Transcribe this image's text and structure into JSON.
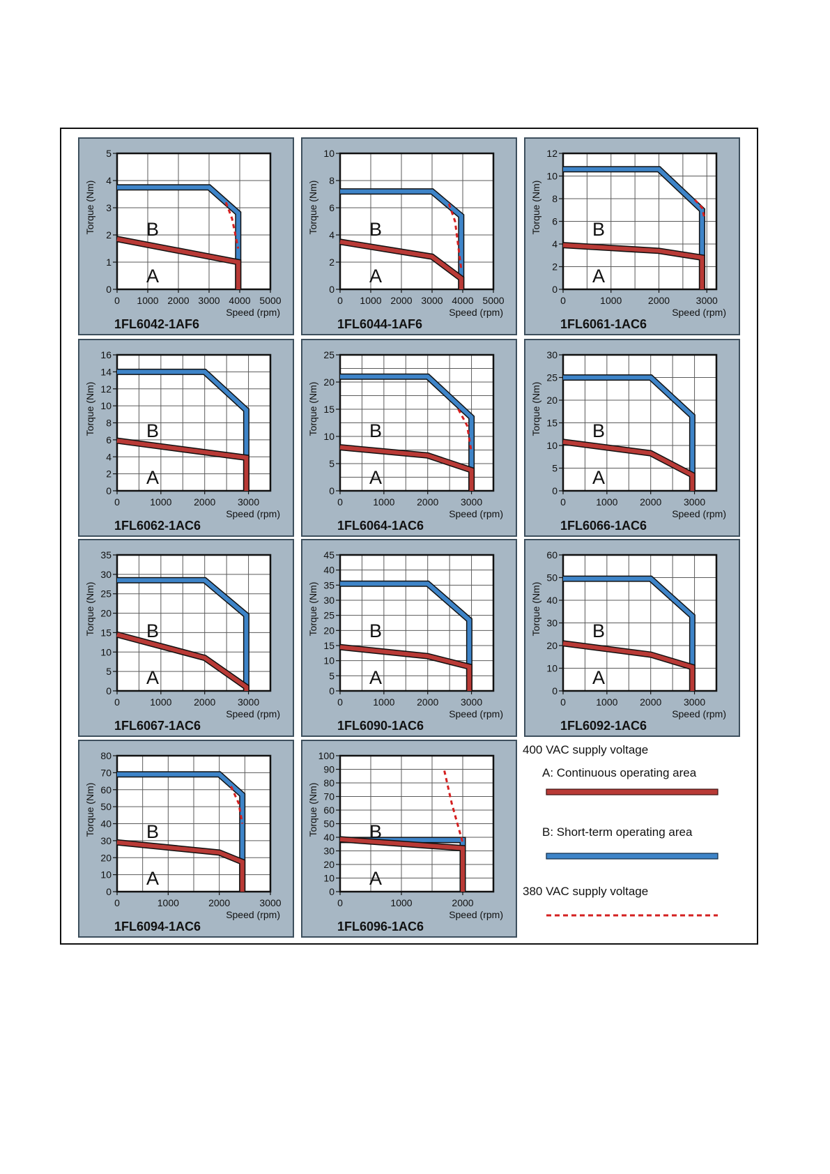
{
  "colors": {
    "panel_bg": "#a7b7c4",
    "plot_bg": "#ffffff",
    "grid": "#5a5a5a",
    "area_a": "#b93a36",
    "area_b": "#3e84c8",
    "dashed_380": "#d42020"
  },
  "legend": {
    "supply_400": "400 VAC supply voltage",
    "a_label": "A: Continuous operating area",
    "b_label": "B: Short-term operating area",
    "supply_380": "380 VAC supply voltage"
  },
  "chart_data": [
    {
      "type": "line",
      "title": "1FL6042-1AF6",
      "xlabel": "Speed (rpm)",
      "ylabel": "Torque (Nm)",
      "xlim": [
        0,
        5000
      ],
      "ylim": [
        0,
        5
      ],
      "xticks": [
        0,
        1000,
        2000,
        3000,
        4000,
        5000
      ],
      "yticks": [
        0,
        1,
        2,
        3,
        4,
        5
      ],
      "xgrid": 1000,
      "ygrid": 1,
      "region_labels": [
        "B",
        "A"
      ],
      "series": [
        {
          "area": "B",
          "x": [
            0,
            3000,
            3950,
            3950
          ],
          "y": [
            3.75,
            3.75,
            2.8,
            0
          ]
        },
        {
          "area": "A",
          "x": [
            0,
            3950,
            3950
          ],
          "y": [
            1.85,
            1.0,
            0
          ]
        },
        {
          "area": "B 380 VAC",
          "x": [
            3550,
            3750,
            3950
          ],
          "y": [
            3.2,
            2.6,
            1.5
          ]
        }
      ]
    },
    {
      "type": "line",
      "title": "1FL6044-1AF6",
      "xlabel": "Speed (rpm)",
      "ylabel": "Torque (Nm)",
      "xlim": [
        0,
        5000
      ],
      "ylim": [
        0,
        10
      ],
      "xticks": [
        0,
        1000,
        2000,
        3000,
        4000,
        5000
      ],
      "yticks": [
        0,
        2,
        4,
        6,
        8,
        10
      ],
      "xgrid": 1000,
      "ygrid": 2,
      "region_labels": [
        "B",
        "A"
      ],
      "series": [
        {
          "area": "B",
          "x": [
            0,
            3000,
            3950,
            3950
          ],
          "y": [
            7.2,
            7.2,
            5.4,
            0
          ]
        },
        {
          "area": "A",
          "x": [
            0,
            3000,
            3950,
            3950
          ],
          "y": [
            3.5,
            2.4,
            0.8,
            0
          ]
        },
        {
          "area": "B 380 VAC",
          "x": [
            3550,
            3750,
            3950
          ],
          "y": [
            6.3,
            5.0,
            1.5
          ]
        }
      ]
    },
    {
      "type": "line",
      "title": "1FL6061-1AC6",
      "xlabel": "Speed (rpm)",
      "ylabel": "Torque (Nm)",
      "xlim": [
        0,
        3200
      ],
      "ylim": [
        0,
        12
      ],
      "xticks": [
        0,
        1000,
        2000,
        3000
      ],
      "yticks": [
        0,
        2,
        4,
        6,
        8,
        10,
        12
      ],
      "xgrid": 500,
      "ygrid": 2,
      "region_labels": [
        "B",
        "A"
      ],
      "series": [
        {
          "area": "B",
          "x": [
            0,
            2000,
            2900,
            2900
          ],
          "y": [
            10.6,
            10.6,
            7.0,
            0
          ]
        },
        {
          "area": "A",
          "x": [
            0,
            2000,
            2900,
            2900
          ],
          "y": [
            3.9,
            3.4,
            2.8,
            0
          ]
        },
        {
          "area": "B 380 VAC",
          "x": [
            2750,
            2900,
            2950
          ],
          "y": [
            7.9,
            7.2,
            6.3
          ]
        }
      ]
    },
    {
      "type": "line",
      "title": "1FL6062-1AC6",
      "xlabel": "Speed (rpm)",
      "ylabel": "Torque (Nm)",
      "xlim": [
        0,
        3500
      ],
      "ylim": [
        0,
        16
      ],
      "xticks": [
        0,
        1000,
        2000,
        3000
      ],
      "yticks": [
        0,
        2,
        4,
        6,
        8,
        10,
        12,
        14,
        16
      ],
      "xgrid": 500,
      "ygrid": 2,
      "region_labels": [
        "B",
        "A"
      ],
      "series": [
        {
          "area": "B",
          "x": [
            0,
            2000,
            2950,
            2950
          ],
          "y": [
            14.0,
            14.0,
            9.5,
            0
          ]
        },
        {
          "area": "A",
          "x": [
            0,
            2950,
            2950
          ],
          "y": [
            5.9,
            3.9,
            0
          ]
        }
      ]
    },
    {
      "type": "line",
      "title": "1FL6064-1AC6",
      "xlabel": "Speed (rpm)",
      "ylabel": "Torque (Nm)",
      "xlim": [
        0,
        3500
      ],
      "ylim": [
        0,
        25
      ],
      "xticks": [
        0,
        1000,
        2000,
        3000
      ],
      "yticks": [
        0,
        5,
        10,
        15,
        20,
        25
      ],
      "xgrid": 500,
      "ygrid": 2.5,
      "region_labels": [
        "B",
        "A"
      ],
      "series": [
        {
          "area": "B",
          "x": [
            0,
            2000,
            3000,
            3000
          ],
          "y": [
            21.0,
            21.0,
            13.5,
            0
          ]
        },
        {
          "area": "A",
          "x": [
            0,
            2000,
            3000,
            3000
          ],
          "y": [
            8.0,
            6.5,
            3.8,
            0
          ]
        },
        {
          "area": "B 380 VAC",
          "x": [
            2700,
            2900,
            3000
          ],
          "y": [
            15.0,
            12.0,
            7.0
          ]
        }
      ]
    },
    {
      "type": "line",
      "title": "1FL6066-1AC6",
      "xlabel": "Speed (rpm)",
      "ylabel": "Torque (Nm)",
      "xlim": [
        0,
        3500
      ],
      "ylim": [
        0,
        30
      ],
      "xticks": [
        0,
        1000,
        2000,
        3000
      ],
      "yticks": [
        0,
        5,
        10,
        15,
        20,
        25,
        30
      ],
      "xgrid": 500,
      "ygrid": 5,
      "region_labels": [
        "B",
        "A"
      ],
      "series": [
        {
          "area": "B",
          "x": [
            0,
            2000,
            2950,
            2950
          ],
          "y": [
            25.0,
            25.0,
            16.5,
            0
          ]
        },
        {
          "area": "A",
          "x": [
            0,
            2000,
            2950,
            2950
          ],
          "y": [
            10.8,
            8.3,
            3.5,
            0
          ]
        }
      ]
    },
    {
      "type": "line",
      "title": "1FL6067-1AC6",
      "xlabel": "Speed (rpm)",
      "ylabel": "Torque (Nm)",
      "xlim": [
        0,
        3500
      ],
      "ylim": [
        0,
        35
      ],
      "xticks": [
        0,
        1000,
        2000,
        3000
      ],
      "yticks": [
        0,
        5,
        10,
        15,
        20,
        25,
        30,
        35
      ],
      "xgrid": 500,
      "ygrid": 5,
      "region_labels": [
        "B",
        "A"
      ],
      "series": [
        {
          "area": "B",
          "x": [
            0,
            2000,
            2950,
            2950
          ],
          "y": [
            28.5,
            28.5,
            19.5,
            0
          ]
        },
        {
          "area": "A",
          "x": [
            0,
            2000,
            2950,
            2950
          ],
          "y": [
            14.5,
            8.5,
            1.0,
            0
          ]
        }
      ]
    },
    {
      "type": "line",
      "title": "1FL6090-1AC6",
      "xlabel": "Speed (rpm)",
      "ylabel": "Torque (Nm)",
      "xlim": [
        0,
        3500
      ],
      "ylim": [
        0,
        45
      ],
      "xticks": [
        0,
        1000,
        2000,
        3000
      ],
      "yticks": [
        0,
        5,
        10,
        15,
        20,
        25,
        30,
        35,
        40,
        45
      ],
      "xgrid": 500,
      "ygrid": 5,
      "region_labels": [
        "B",
        "A"
      ],
      "series": [
        {
          "area": "B",
          "x": [
            0,
            2000,
            2950,
            2950
          ],
          "y": [
            35.5,
            35.5,
            23.5,
            0
          ]
        },
        {
          "area": "A",
          "x": [
            0,
            2000,
            2950,
            2950
          ],
          "y": [
            14.5,
            11.5,
            8.0,
            0
          ]
        }
      ]
    },
    {
      "type": "line",
      "title": "1FL6092-1AC6",
      "xlabel": "Speed (rpm)",
      "ylabel": "Torque (Nm)",
      "xlim": [
        0,
        3500
      ],
      "ylim": [
        0,
        60
      ],
      "xticks": [
        0,
        1000,
        2000,
        3000
      ],
      "yticks": [
        0,
        10,
        20,
        30,
        40,
        50,
        60
      ],
      "xgrid": 500,
      "ygrid": 10,
      "region_labels": [
        "B",
        "A"
      ],
      "series": [
        {
          "area": "B",
          "x": [
            0,
            2000,
            2950,
            2950
          ],
          "y": [
            49.5,
            49.5,
            33.0,
            0
          ]
        },
        {
          "area": "A",
          "x": [
            0,
            2000,
            2950,
            2950
          ],
          "y": [
            21.0,
            16.0,
            10.5,
            0
          ]
        }
      ]
    },
    {
      "type": "line",
      "title": "1FL6094-1AC6",
      "xlabel": "Speed (rpm)",
      "ylabel": "Torque (Nm)",
      "xlim": [
        0,
        3000
      ],
      "ylim": [
        0,
        80
      ],
      "xticks": [
        0,
        1000,
        2000,
        3000
      ],
      "yticks": [
        0,
        10,
        20,
        30,
        40,
        50,
        60,
        70,
        80
      ],
      "xgrid": 500,
      "ygrid": 10,
      "region_labels": [
        "B",
        "A"
      ],
      "series": [
        {
          "area": "B",
          "x": [
            0,
            2000,
            2450,
            2450
          ],
          "y": [
            69.0,
            69.0,
            57.0,
            0
          ]
        },
        {
          "area": "A",
          "x": [
            0,
            2000,
            2450,
            2450
          ],
          "y": [
            29.0,
            23.0,
            17.5,
            0
          ]
        },
        {
          "area": "B 380 VAC",
          "x": [
            2230,
            2380,
            2450
          ],
          "y": [
            62.0,
            52.0,
            40.0
          ]
        }
      ]
    },
    {
      "type": "line",
      "title": "1FL6096-1AC6",
      "xlabel": "Speed (rpm)",
      "ylabel": "Torque (Nm)",
      "xlim": [
        0,
        2500
      ],
      "ylim": [
        0,
        100
      ],
      "xticks": [
        0,
        1000,
        2000
      ],
      "yticks": [
        0,
        10,
        20,
        30,
        40,
        50,
        60,
        70,
        80,
        90,
        100
      ],
      "xgrid": 500,
      "ygrid": 10,
      "region_labels": [
        "B",
        "A"
      ],
      "series": [
        {
          "area": "B",
          "x": [
            0,
            2000,
            2000
          ],
          "y": [
            38.0,
            38.0,
            0
          ]
        },
        {
          "area": "A",
          "x": [
            0,
            2000,
            2000
          ],
          "y": [
            38.5,
            32.0,
            0
          ]
        },
        {
          "area": "B 380 VAC",
          "x": [
            1700,
            1820,
            2000
          ],
          "y": [
            89.0,
            65.0,
            36.0
          ]
        }
      ]
    }
  ]
}
